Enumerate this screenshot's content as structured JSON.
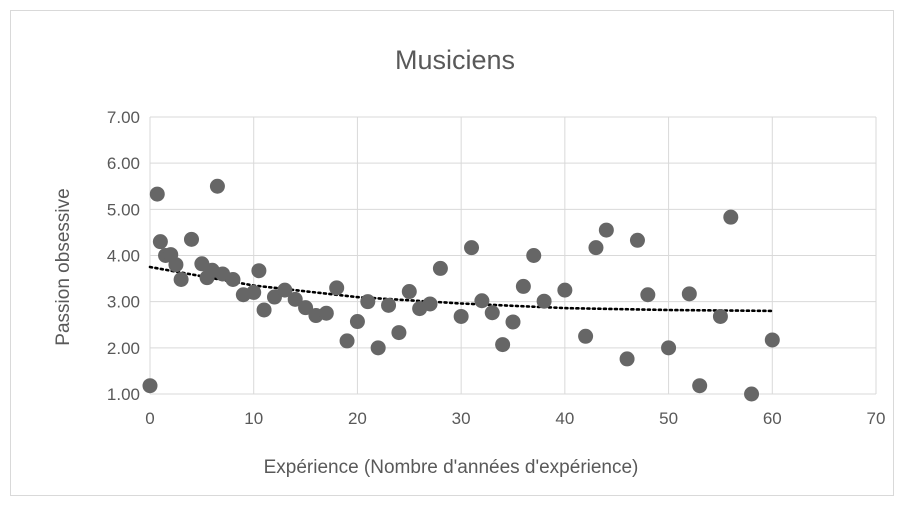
{
  "chart_data": {
    "type": "scatter",
    "title": "Musiciens",
    "xlabel": "Expérience (Nombre d'années d'expérience)",
    "ylabel": "Passion obsessive",
    "xlim": [
      0,
      70
    ],
    "ylim": [
      1,
      7
    ],
    "x_ticks": [
      0,
      10,
      20,
      30,
      40,
      50,
      60,
      70
    ],
    "y_ticks": [
      "1.00",
      "2.00",
      "3.00",
      "4.00",
      "5.00",
      "6.00",
      "7.00"
    ],
    "grid": true,
    "legend": "none",
    "point_color": "#666666",
    "trendline": {
      "style": "dotted",
      "color": "#000000",
      "points": [
        [
          0,
          3.75
        ],
        [
          10,
          3.35
        ],
        [
          20,
          3.1
        ],
        [
          30,
          2.96
        ],
        [
          40,
          2.86
        ],
        [
          50,
          2.82
        ],
        [
          60,
          2.8
        ]
      ]
    },
    "points": [
      [
        0,
        1.18
      ],
      [
        0.7,
        5.33
      ],
      [
        1,
        4.3
      ],
      [
        1.5,
        4.0
      ],
      [
        2,
        4.02
      ],
      [
        2.5,
        3.8
      ],
      [
        3,
        3.48
      ],
      [
        4,
        4.35
      ],
      [
        5,
        3.82
      ],
      [
        5.5,
        3.52
      ],
      [
        6,
        3.68
      ],
      [
        6.5,
        5.5
      ],
      [
        7,
        3.6
      ],
      [
        8,
        3.48
      ],
      [
        9,
        3.15
      ],
      [
        10,
        3.2
      ],
      [
        10.5,
        3.67
      ],
      [
        11,
        2.82
      ],
      [
        12,
        3.1
      ],
      [
        13,
        3.25
      ],
      [
        14,
        3.05
      ],
      [
        15,
        2.87
      ],
      [
        16,
        2.7
      ],
      [
        17,
        2.75
      ],
      [
        18,
        3.3
      ],
      [
        19,
        2.15
      ],
      [
        20,
        2.57
      ],
      [
        21,
        3.0
      ],
      [
        22,
        2.0
      ],
      [
        23,
        2.92
      ],
      [
        24,
        2.33
      ],
      [
        25,
        3.22
      ],
      [
        26,
        2.85
      ],
      [
        27,
        2.95
      ],
      [
        28,
        3.72
      ],
      [
        30,
        2.68
      ],
      [
        31,
        4.17
      ],
      [
        32,
        3.02
      ],
      [
        33,
        2.76
      ],
      [
        34,
        2.07
      ],
      [
        35,
        2.56
      ],
      [
        36,
        3.33
      ],
      [
        37,
        4.0
      ],
      [
        38,
        3.01
      ],
      [
        40,
        3.25
      ],
      [
        42,
        2.25
      ],
      [
        43,
        4.17
      ],
      [
        44,
        4.55
      ],
      [
        46,
        1.76
      ],
      [
        47,
        4.33
      ],
      [
        48,
        3.15
      ],
      [
        50,
        2.0
      ],
      [
        52,
        3.17
      ],
      [
        53,
        1.18
      ],
      [
        55,
        2.68
      ],
      [
        56,
        4.83
      ],
      [
        58,
        1.0
      ],
      [
        60,
        2.17
      ]
    ]
  }
}
